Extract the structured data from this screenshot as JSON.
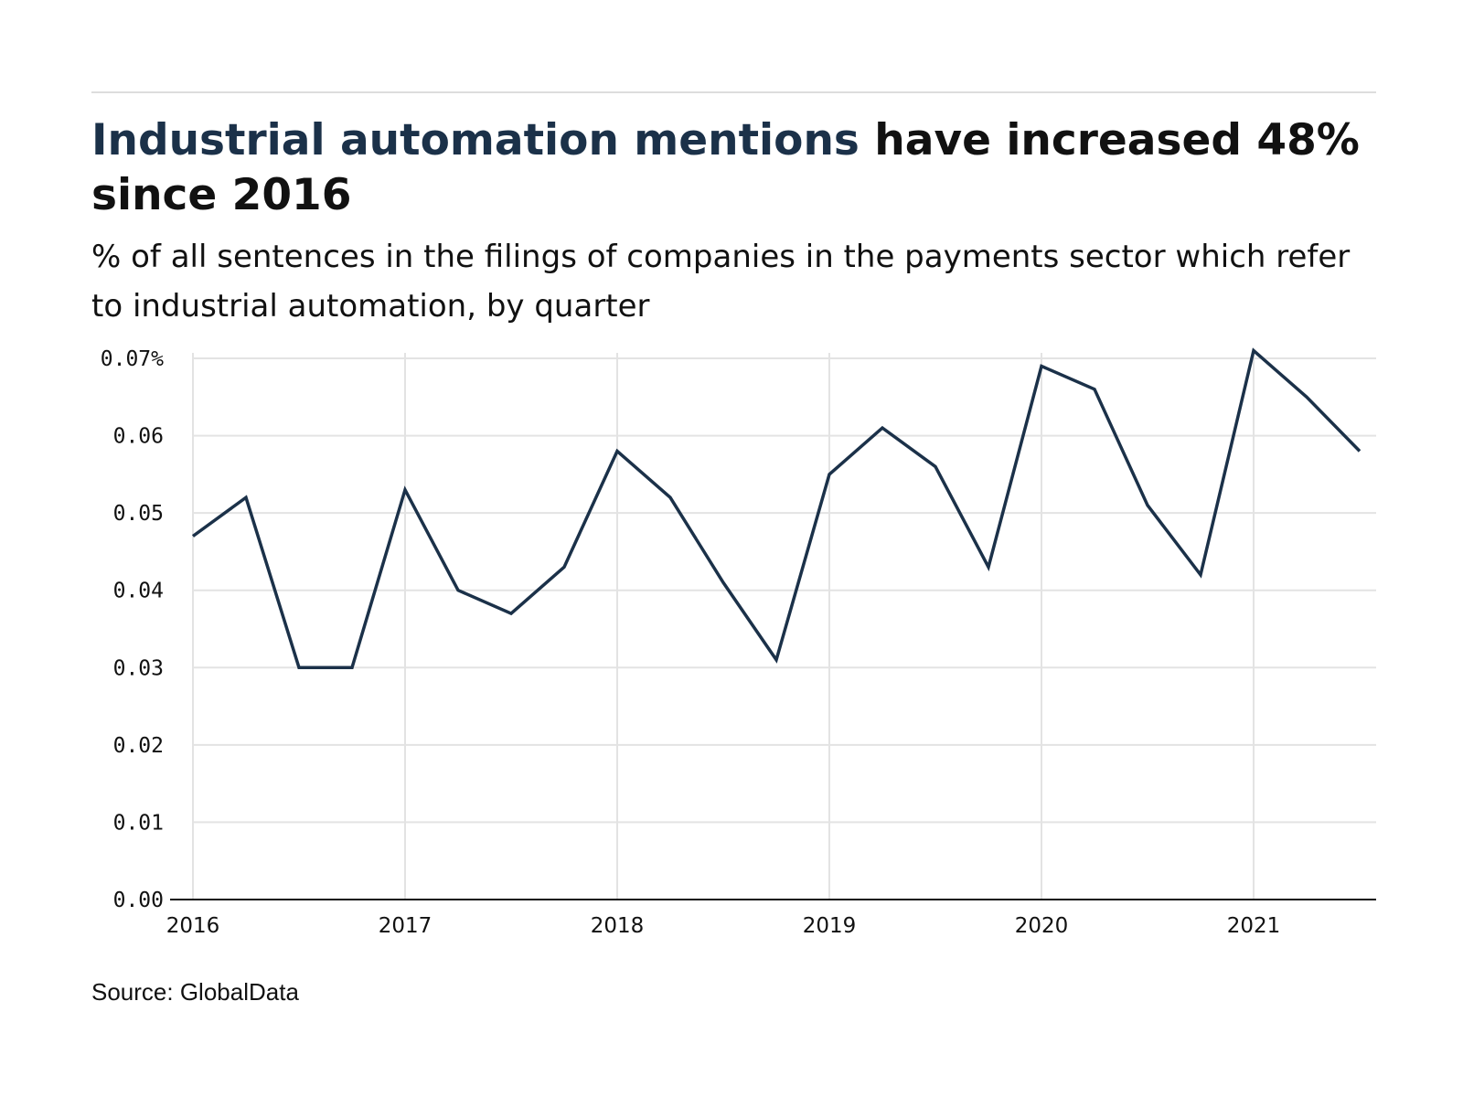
{
  "header": {
    "title_highlight": "Industrial automation mentions",
    "title_rest": " have increased 48% since 2016",
    "subtitle": "% of all sentences in the filings of companies in the payments sector which refer to industrial automation, by quarter"
  },
  "footer": {
    "source": "Source: GlobalData"
  },
  "colors": {
    "line": "#1b3149",
    "highlight": "#1b3149",
    "grid": "#e3e3e3",
    "axis": "#111111"
  },
  "chart_data": {
    "type": "line",
    "title": "Industrial automation mentions have increased 48% since 2016",
    "subtitle": "% of all sentences in the filings of companies in the payments sector which refer to industrial automation, by quarter",
    "xlabel": "",
    "ylabel": "",
    "x_ticks": [
      "2016",
      "2017",
      "2018",
      "2019",
      "2020",
      "2021"
    ],
    "y_ticks": [
      "0.00",
      "0.01",
      "0.02",
      "0.03",
      "0.04",
      "0.05",
      "0.06",
      "0.07%"
    ],
    "ylim": [
      0,
      0.07
    ],
    "xlim": [
      "2016 Q1",
      "2021 Q3"
    ],
    "grid": true,
    "series": [
      {
        "x": [
          "2016 Q1",
          "2016 Q2",
          "2016 Q3",
          "2016 Q4",
          "2017 Q1",
          "2017 Q2",
          "2017 Q3",
          "2017 Q4",
          "2018 Q1",
          "2018 Q2",
          "2018 Q3",
          "2018 Q4",
          "2019 Q1",
          "2019 Q2",
          "2019 Q3",
          "2019 Q4",
          "2020 Q1",
          "2020 Q2",
          "2020 Q3",
          "2020 Q4",
          "2021 Q1",
          "2021 Q2",
          "2021 Q3"
        ],
        "values": [
          0.047,
          0.052,
          0.03,
          0.03,
          0.053,
          0.04,
          0.037,
          0.043,
          0.058,
          0.052,
          0.041,
          0.031,
          0.055,
          0.061,
          0.056,
          0.043,
          0.069,
          0.066,
          0.051,
          0.042,
          0.071,
          0.065,
          0.058
        ]
      }
    ]
  }
}
